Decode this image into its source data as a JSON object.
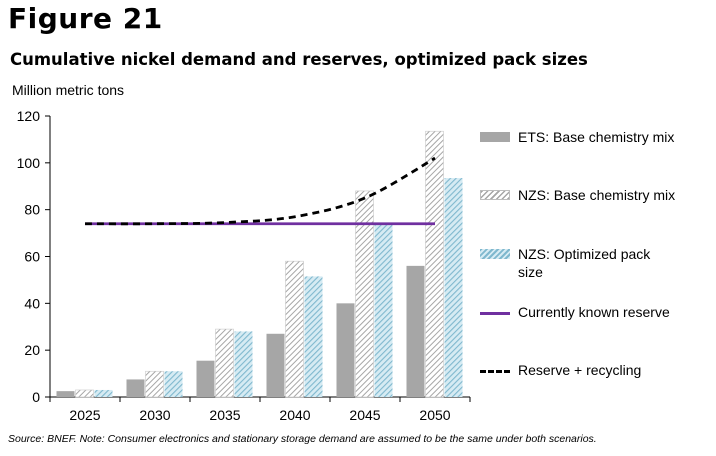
{
  "figure_label": "Figure 21",
  "title": "Cumulative nickel demand and reserves, optimized pack sizes",
  "unit_label": "Million metric tons",
  "source_note": "Source: BNEF. Note: Consumer electronics and stationary storage demand are assumed to be the same under both scenarios.",
  "colors": {
    "ets": "#a6a6a6",
    "nzs_hatch": "#a6a6a6",
    "optimized_hatch": "#7fb8ce",
    "reserve_line": "#7030a0",
    "recycling_line": "#000000"
  },
  "legend": {
    "ets": "ETS: Base chemistry mix",
    "nzs": "NZS: Base chemistry mix",
    "optimized": "NZS: Optimized pack size",
    "reserve": "Currently known reserve",
    "recycling": "Reserve + recycling"
  },
  "chart_data": {
    "type": "bar",
    "title": "Cumulative nickel demand and reserves, optimized pack sizes",
    "ylabel": "Million metric tons",
    "ylim": [
      0,
      120
    ],
    "yticks": [
      0,
      20,
      40,
      60,
      80,
      100,
      120
    ],
    "grid": false,
    "legend_position": "right",
    "categories": [
      "2025",
      "2030",
      "2035",
      "2040",
      "2045",
      "2050"
    ],
    "series": [
      {
        "name": "ETS: Base chemistry mix",
        "type": "bar",
        "values": [
          2.5,
          7.5,
          15.5,
          27,
          40,
          56
        ]
      },
      {
        "name": "NZS: Base chemistry mix",
        "type": "bar",
        "values": [
          3,
          11,
          29,
          58,
          88,
          113.5
        ]
      },
      {
        "name": "NZS: Optimized pack size",
        "type": "bar",
        "values": [
          3,
          11,
          28,
          51.5,
          74,
          93.5
        ]
      },
      {
        "name": "Currently known reserve",
        "type": "line",
        "values": [
          74,
          74,
          74,
          74,
          74,
          74
        ]
      },
      {
        "name": "Reserve + recycling",
        "type": "line",
        "style": "dashed",
        "values": [
          74,
          74,
          74.5,
          77,
          85,
          102
        ]
      }
    ]
  }
}
